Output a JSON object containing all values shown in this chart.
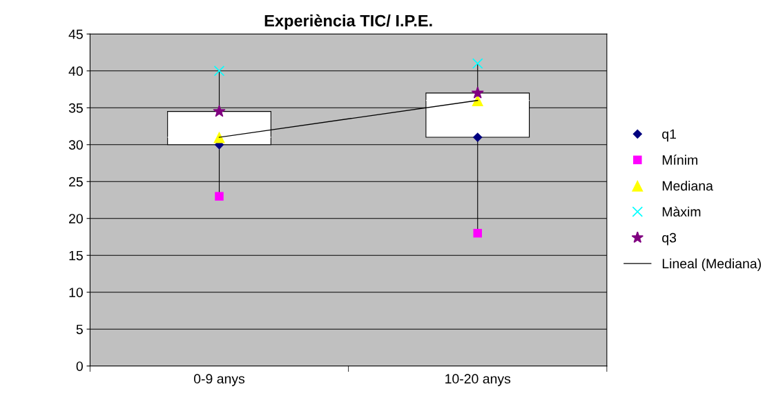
{
  "chart_data": {
    "type": "box",
    "title": "Experiència TIC/ I.P.E.",
    "categories": [
      "0-9 anys",
      "10-20 anys"
    ],
    "boxes": [
      {
        "low": 23,
        "q1": 30,
        "median": 31,
        "q3": 34.5,
        "high": 40
      },
      {
        "low": 18,
        "q1": 31,
        "median": 36,
        "q3": 37,
        "high": 41
      }
    ],
    "series": [
      {
        "name": "q1",
        "type": "scatter",
        "color": "#000080",
        "marker": "diamond",
        "x": [
          "0-9 anys",
          "10-20 anys"
        ],
        "values": [
          30,
          31
        ]
      },
      {
        "name": "Mínim",
        "type": "scatter",
        "color": "#ff00ff",
        "marker": "square",
        "x": [
          "0-9 anys",
          "10-20 anys"
        ],
        "values": [
          23,
          18
        ]
      },
      {
        "name": "Mediana",
        "type": "scatter",
        "color": "#ffff00",
        "marker": "triangle",
        "x": [
          "0-9 anys",
          "10-20 anys"
        ],
        "values": [
          31,
          36
        ]
      },
      {
        "name": "Màxim",
        "type": "scatter",
        "color": "#00ffff",
        "marker": "cross",
        "x": [
          "0-9 anys",
          "10-20 anys"
        ],
        "values": [
          40,
          41
        ]
      },
      {
        "name": "q3",
        "type": "scatter",
        "color": "#800080",
        "marker": "star",
        "x": [
          "0-9 anys",
          "10-20 anys"
        ],
        "values": [
          34.5,
          37
        ]
      },
      {
        "name": "Lineal (Mediana)",
        "type": "line",
        "color": "#000000",
        "marker": "none",
        "x": [
          "0-9 anys",
          "10-20 anys"
        ],
        "values": [
          31,
          36
        ]
      }
    ],
    "ylim": [
      0,
      45
    ],
    "yticks": [
      0,
      5,
      10,
      15,
      20,
      25,
      30,
      35,
      40,
      45
    ],
    "grid": "y",
    "legend": "right"
  }
}
